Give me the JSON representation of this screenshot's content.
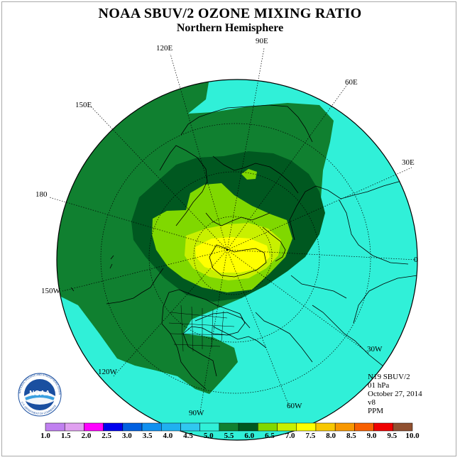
{
  "title": "NOAA SBUV/2 OZONE MIXING RATIO",
  "subtitle": "Northern Hemisphere",
  "longitude_labels": {
    "l90e": "90E",
    "l60e": "60E",
    "l30e": "30E",
    "l0": "0",
    "l30w": "30W",
    "l60w": "60W",
    "l90w": "90W",
    "l120w": "120W",
    "l150w": "150W",
    "l180": "180",
    "l150e": "150E",
    "l120e": "120E"
  },
  "info": {
    "instrument": "N19 SBUV/2",
    "level": "01 hPa",
    "date": "October 27, 2014",
    "version": "v8",
    "units": "PPM"
  },
  "colorbar": {
    "labels": [
      "1.0",
      "1.5",
      "2.0",
      "2.5",
      "3.0",
      "3.5",
      "4.0",
      "4.5",
      "5.0",
      "5.5",
      "6.0",
      "6.5",
      "7.0",
      "7.5",
      "8.0",
      "8.5",
      "9.0",
      "9.5",
      "10.0"
    ],
    "colors": [
      "#c080f0",
      "#e0a0f0",
      "#ff00ff",
      "#0000ee",
      "#0060e0",
      "#1090f0",
      "#20b0f0",
      "#30c8f0",
      "#30f0d8",
      "#108030",
      "#005820",
      "#80d800",
      "#c8f000",
      "#ffff00",
      "#f8c800",
      "#f89800",
      "#f86000",
      "#f00000",
      "#905030"
    ]
  },
  "logo": {
    "text": "NOAA",
    "ring_top": "NATIONAL OCEANIC AND ATMOSPHERIC ADMINISTRATION",
    "ring_bottom": "U.S. DEPARTMENT OF COMMERCE"
  },
  "colors": {
    "level_4_5": "#30f0d8",
    "level_5_0": "#108030",
    "level_5_5": "#005820",
    "level_6_0": "#80d800",
    "level_6_5": "#c8f000",
    "level_7_0": "#ffff00"
  }
}
